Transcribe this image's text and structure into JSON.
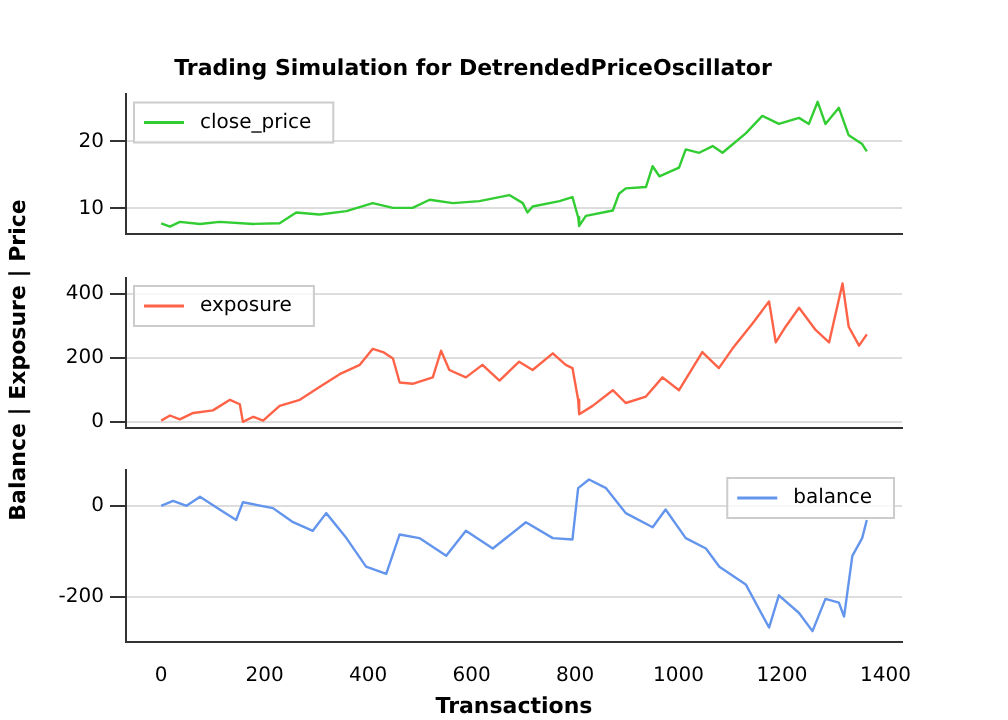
{
  "chart_data": [
    {
      "type": "line",
      "title": "Trading Simulation for DetrendedPriceOscillator",
      "xlim": [
        -68,
        1432
      ],
      "ylim": [
        6.2,
        27.0
      ],
      "yticks": [
        10,
        20
      ],
      "grid": "y",
      "legend": "top left",
      "tick_labels": "y",
      "series": [
        {
          "name": "close_price",
          "color": "#32cd32",
          "x": [
            0,
            17,
            36,
            75,
            113,
            178,
            229,
            261,
            306,
            358,
            409,
            448,
            486,
            519,
            564,
            615,
            673,
            699,
            708,
            718,
            770,
            795,
            806,
            808,
            821,
            873,
            885,
            898,
            937,
            950,
            963,
            1001,
            1014,
            1040,
            1066,
            1085,
            1130,
            1162,
            1194,
            1233,
            1252,
            1269,
            1284,
            1310,
            1329,
            1355,
            1364
          ],
          "values": [
            7.8,
            7.3,
            8.0,
            7.7,
            8.0,
            7.7,
            7.8,
            9.4,
            9.1,
            9.6,
            10.8,
            10.1,
            10.1,
            11.3,
            10.8,
            11.1,
            12.0,
            10.8,
            9.4,
            10.3,
            11.1,
            11.7,
            8.7,
            7.4,
            8.9,
            9.7,
            12.2,
            13.0,
            13.2,
            16.3,
            14.8,
            16.1,
            18.8,
            18.3,
            19.3,
            18.3,
            21.2,
            23.8,
            22.6,
            23.5,
            22.6,
            25.9,
            22.6,
            25.0,
            20.9,
            19.6,
            18.5
          ]
        }
      ]
    },
    {
      "type": "line",
      "ylabel": "Balance | Exposure | Price",
      "xlim": [
        -68,
        1432
      ],
      "ylim": [
        -19,
        449
      ],
      "yticks": [
        0,
        200,
        400
      ],
      "grid": "y",
      "legend": "top left",
      "tick_labels": "y",
      "series": [
        {
          "name": "exposure",
          "color": "#ff6347",
          "x": [
            0,
            17,
            36,
            62,
            100,
            133,
            152,
            158,
            178,
            197,
            229,
            268,
            306,
            345,
            384,
            409,
            429,
            448,
            461,
            486,
            525,
            541,
            557,
            589,
            621,
            654,
            692,
            718,
            757,
            782,
            795,
            806,
            808,
            834,
            873,
            898,
            937,
            969,
            1001,
            1046,
            1078,
            1104,
            1143,
            1175,
            1188,
            1207,
            1233,
            1265,
            1291,
            1317,
            1329,
            1349,
            1364
          ],
          "values": [
            4,
            20,
            8,
            28,
            36,
            69,
            55,
            0,
            16,
            4,
            50,
            69,
            109,
            149,
            178,
            228,
            218,
            198,
            123,
            119,
            139,
            222,
            162,
            139,
            178,
            129,
            188,
            162,
            214,
            178,
            168,
            69,
            24,
            50,
            99,
            59,
            79,
            139,
            99,
            218,
            168,
            228,
            307,
            376,
            248,
            297,
            356,
            287,
            248,
            432,
            297,
            238,
            273
          ]
        }
      ]
    },
    {
      "type": "line",
      "xlabel": "Transactions",
      "xlim": [
        -68,
        1432
      ],
      "xticks": [
        0,
        200,
        400,
        600,
        800,
        1000,
        1200,
        1400
      ],
      "ylim": [
        -299,
        79
      ],
      "yticks": [
        -200,
        0
      ],
      "grid": "y",
      "legend": "top right",
      "series": [
        {
          "name": "balance",
          "color": "#6495ed",
          "x": [
            0,
            23,
            49,
            75,
            113,
            145,
            158,
            216,
            255,
            293,
            319,
            358,
            396,
            435,
            461,
            499,
            551,
            589,
            641,
            705,
            757,
            795,
            806,
            827,
            860,
            898,
            950,
            975,
            1014,
            1053,
            1079,
            1130,
            1175,
            1194,
            1233,
            1259,
            1284,
            1310,
            1320,
            1336,
            1355,
            1364
          ],
          "values": [
            0,
            11,
            0,
            20,
            -8,
            -31,
            8,
            -5,
            -36,
            -55,
            -16,
            -71,
            -134,
            -150,
            -63,
            -71,
            -110,
            -55,
            -94,
            -36,
            -71,
            -74,
            39,
            58,
            39,
            -16,
            -47,
            -8,
            -71,
            -94,
            -134,
            -173,
            -268,
            -197,
            -236,
            -276,
            -205,
            -213,
            -244,
            -110,
            -71,
            -31
          ]
        }
      ]
    }
  ]
}
